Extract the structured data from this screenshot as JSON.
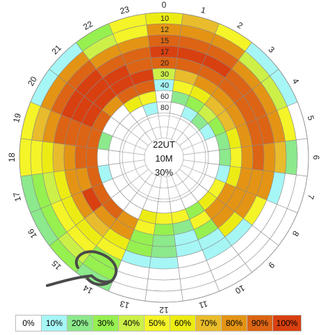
{
  "chart_data": {
    "type": "polar-heatmap",
    "center_labels": [
      "22UT",
      "10M",
      "30%"
    ],
    "hours": [
      0,
      1,
      2,
      3,
      4,
      5,
      6,
      7,
      8,
      9,
      10,
      11,
      12,
      13,
      14,
      15,
      16,
      17,
      18,
      19,
      20,
      21,
      22,
      23
    ],
    "rings": [
      10,
      12,
      15,
      17,
      20,
      30,
      40,
      60,
      80
    ],
    "ring_labels": [
      "10",
      "12",
      "15",
      "17",
      "20",
      "30",
      "40",
      "60",
      "80"
    ],
    "legend": [
      {
        "label": "0%",
        "color": "#ffffff"
      },
      {
        "label": "10%",
        "color": "#a6f6f6"
      },
      {
        "label": "20%",
        "color": "#8ce98c"
      },
      {
        "label": "30%",
        "color": "#96f050"
      },
      {
        "label": "40%",
        "color": "#ccf048"
      },
      {
        "label": "50%",
        "color": "#f4f428"
      },
      {
        "label": "60%",
        "color": "#ecec14"
      },
      {
        "label": "70%",
        "color": "#e8bc2c"
      },
      {
        "label": "80%",
        "color": "#e49414"
      },
      {
        "label": "90%",
        "color": "#dc6414"
      },
      {
        "label": "100%",
        "color": "#d84010"
      }
    ],
    "values": [
      [
        6,
        8,
        9,
        10,
        9,
        4,
        1,
        0,
        0
      ],
      [
        7,
        8,
        9,
        10,
        9,
        7,
        5,
        2,
        0
      ],
      [
        5,
        8,
        9,
        10,
        9,
        8,
        6,
        3,
        1
      ],
      [
        1,
        4,
        8,
        9,
        9,
        8,
        7,
        4,
        2
      ],
      [
        1,
        4,
        8,
        9,
        9,
        8,
        7,
        3,
        1
      ],
      [
        0,
        5,
        8,
        9,
        9,
        8,
        6,
        2,
        0
      ],
      [
        0,
        2,
        7,
        8,
        9,
        8,
        5,
        2,
        0
      ],
      [
        0,
        0,
        1,
        8,
        8,
        8,
        6,
        1,
        0
      ],
      [
        0,
        0,
        0,
        5,
        8,
        8,
        8,
        5,
        0
      ],
      [
        0,
        0,
        0,
        1,
        6,
        8,
        8,
        6,
        0
      ],
      [
        0,
        0,
        0,
        1,
        1,
        3,
        5,
        3,
        0
      ],
      [
        0,
        0,
        0,
        0,
        1,
        1,
        2,
        5,
        0
      ],
      [
        0,
        0,
        0,
        1,
        2,
        2,
        3,
        5,
        0
      ],
      [
        0,
        0,
        0,
        1,
        3,
        3,
        5,
        6,
        0
      ],
      [
        2,
        3,
        3,
        5,
        6,
        8,
        8,
        0,
        0
      ],
      [
        3,
        4,
        5,
        6,
        7,
        8,
        9,
        0,
        0
      ],
      [
        2,
        3,
        5,
        6,
        8,
        10,
        9,
        0,
        0
      ],
      [
        2,
        3,
        4,
        6,
        8,
        8,
        9,
        1,
        0
      ],
      [
        5,
        5,
        6,
        7,
        8,
        9,
        9,
        0,
        0
      ],
      [
        5,
        7,
        8,
        9,
        9,
        9,
        9,
        2,
        0
      ],
      [
        1,
        8,
        9,
        10,
        10,
        10,
        9,
        0,
        0
      ],
      [
        1,
        8,
        9,
        10,
        10,
        10,
        8,
        0,
        0
      ],
      [
        3,
        4,
        8,
        9,
        10,
        10,
        9,
        6,
        0
      ],
      [
        5,
        5,
        8,
        9,
        9,
        10,
        9,
        5,
        1
      ]
    ]
  }
}
